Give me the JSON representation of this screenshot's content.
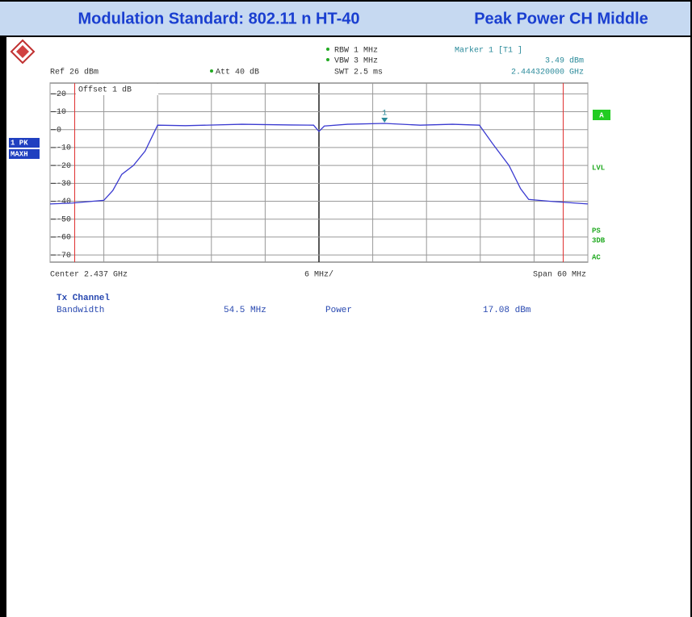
{
  "header": {
    "left": "Modulation Standard: 802.11 n HT-40",
    "right": "Peak Power CH Middle"
  },
  "chart_data": {
    "type": "line",
    "settings": {
      "ref": "Ref 26 dBm",
      "offset": "Offset 1 dB",
      "att": "Att 40 dB",
      "rbw": "RBW 1 MHz",
      "vbw": "VBW 3 MHz",
      "swt": "SWT 2.5 ms"
    },
    "marker": {
      "label": "Marker 1 [T1 ]",
      "name": "1",
      "x": 2444.32,
      "value": 3.49,
      "value_label": "3.49 dBm",
      "x_label": "2.444320000 GHz"
    },
    "x_labels": {
      "center": "Center 2.437 GHz",
      "div": "6 MHz/",
      "span": "Span 60 MHz"
    },
    "indicators": {
      "left": [
        "1 PK",
        "MAXH"
      ],
      "right_box": "A",
      "right": [
        "LVL",
        "PS",
        "3DB",
        "AC"
      ]
    },
    "xlim": [
      2407,
      2467
    ],
    "xticks": [
      2407,
      2413,
      2419,
      2425,
      2431,
      2437,
      2443,
      2449,
      2455,
      2461,
      2467
    ],
    "ylim": [
      -74,
      26
    ],
    "yticks": [
      20,
      10,
      0,
      -10,
      -20,
      -30,
      -40,
      -50,
      -60,
      -70
    ],
    "grid": true,
    "channel_limits": [
      2409.75,
      2464.25
    ],
    "limit_color": "#e03030",
    "series": [
      {
        "name": "Trace 1",
        "color": "#3a3ad0",
        "x": [
          2407,
          2409.5,
          2411.8,
          2413,
          2414,
          2415,
          2416.3,
          2417.6,
          2419,
          2422.1,
          2428.4,
          2433.8,
          2436.4,
          2437,
          2437.6,
          2440.2,
          2444.32,
          2448.3,
          2451.9,
          2454.9,
          2456.4,
          2458.2,
          2459.5,
          2460.4,
          2462.7,
          2467
        ],
        "values": [
          -41.5,
          -41,
          -40,
          -39.5,
          -34,
          -25,
          -20,
          -12,
          2.5,
          2.2,
          3,
          2.6,
          2.5,
          -1,
          2,
          3,
          3.49,
          2.5,
          3,
          2.5,
          -8,
          -20,
          -33,
          -39,
          -40,
          -41.5
        ]
      }
    ]
  },
  "readout": {
    "title": "Tx Channel",
    "bandwidth_label": "Bandwidth",
    "bandwidth": "54.5 MHz",
    "power_label": "Power",
    "power": "17.08 dBm"
  }
}
